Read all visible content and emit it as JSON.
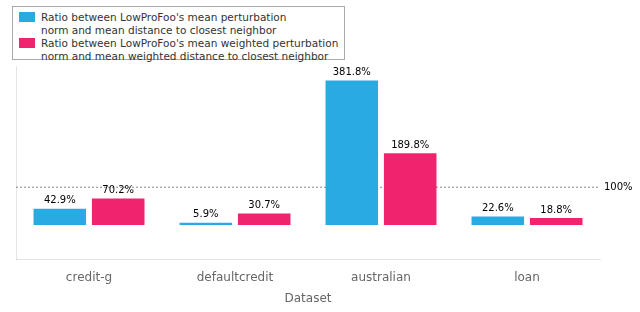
{
  "chart_data": {
    "type": "bar",
    "xlabel": "Dataset",
    "categories": [
      "credit-g",
      "defaultcredit",
      "australian",
      "loan"
    ],
    "series": [
      {
        "name": "Ratio between LowProFoo's mean perturbation\nnorm and mean distance to closest neighbor",
        "color": "#29abe2",
        "values": [
          42.9,
          5.9,
          381.8,
          22.6
        ],
        "value_labels": [
          "42.9%",
          "5.9%",
          "381.8%",
          "22.6%"
        ]
      },
      {
        "name": "Ratio between LowProFoo's mean weighted perturbation\nnorm and mean weighted distance to closest neighbor",
        "color": "#f0246e",
        "values": [
          70.2,
          30.7,
          189.8,
          18.8
        ],
        "value_labels": [
          "70.2%",
          "30.7%",
          "189.8%",
          "18.8%"
        ]
      }
    ],
    "annotations": [
      {
        "type": "hline",
        "y": 100,
        "text": "100%"
      }
    ],
    "ylim": [
      -90,
      420
    ],
    "grid": false,
    "legend": "upper left",
    "data_labels": true,
    "tick_labels": "x"
  }
}
